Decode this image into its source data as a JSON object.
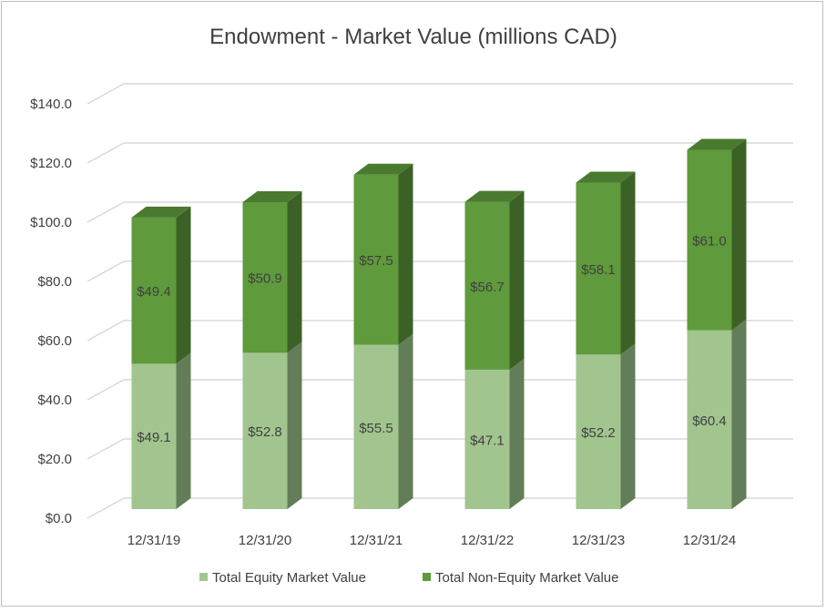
{
  "chart_data": {
    "type": "bar",
    "stacked": true,
    "three_d": true,
    "title": "Endowment - Market Value (millions CAD)",
    "categories": [
      "12/31/19",
      "12/31/20",
      "12/31/21",
      "12/31/22",
      "12/31/23",
      "12/31/24"
    ],
    "series": [
      {
        "name": "Total Equity Market Value",
        "values": [
          49.1,
          52.8,
          55.5,
          47.1,
          52.2,
          60.4
        ],
        "labels": [
          "$49.1",
          "$52.8",
          "$55.5",
          "$47.1",
          "$52.2",
          "$60.4"
        ],
        "color": "#a2c58f"
      },
      {
        "name": "Total Non-Equity Market Value",
        "values": [
          49.4,
          50.9,
          57.5,
          56.7,
          58.1,
          61.0
        ],
        "labels": [
          "$49.4",
          "$50.9",
          "$57.5",
          "$56.7",
          "$58.1",
          "$61.0"
        ],
        "color": "#5f9a3c"
      }
    ],
    "yticks": [
      "$0.0",
      "$20.0",
      "$40.0",
      "$60.0",
      "$80.0",
      "$100.0",
      "$120.0",
      "$140.0"
    ],
    "ylim": [
      0,
      140
    ],
    "grid": true,
    "legend": "bottom"
  }
}
